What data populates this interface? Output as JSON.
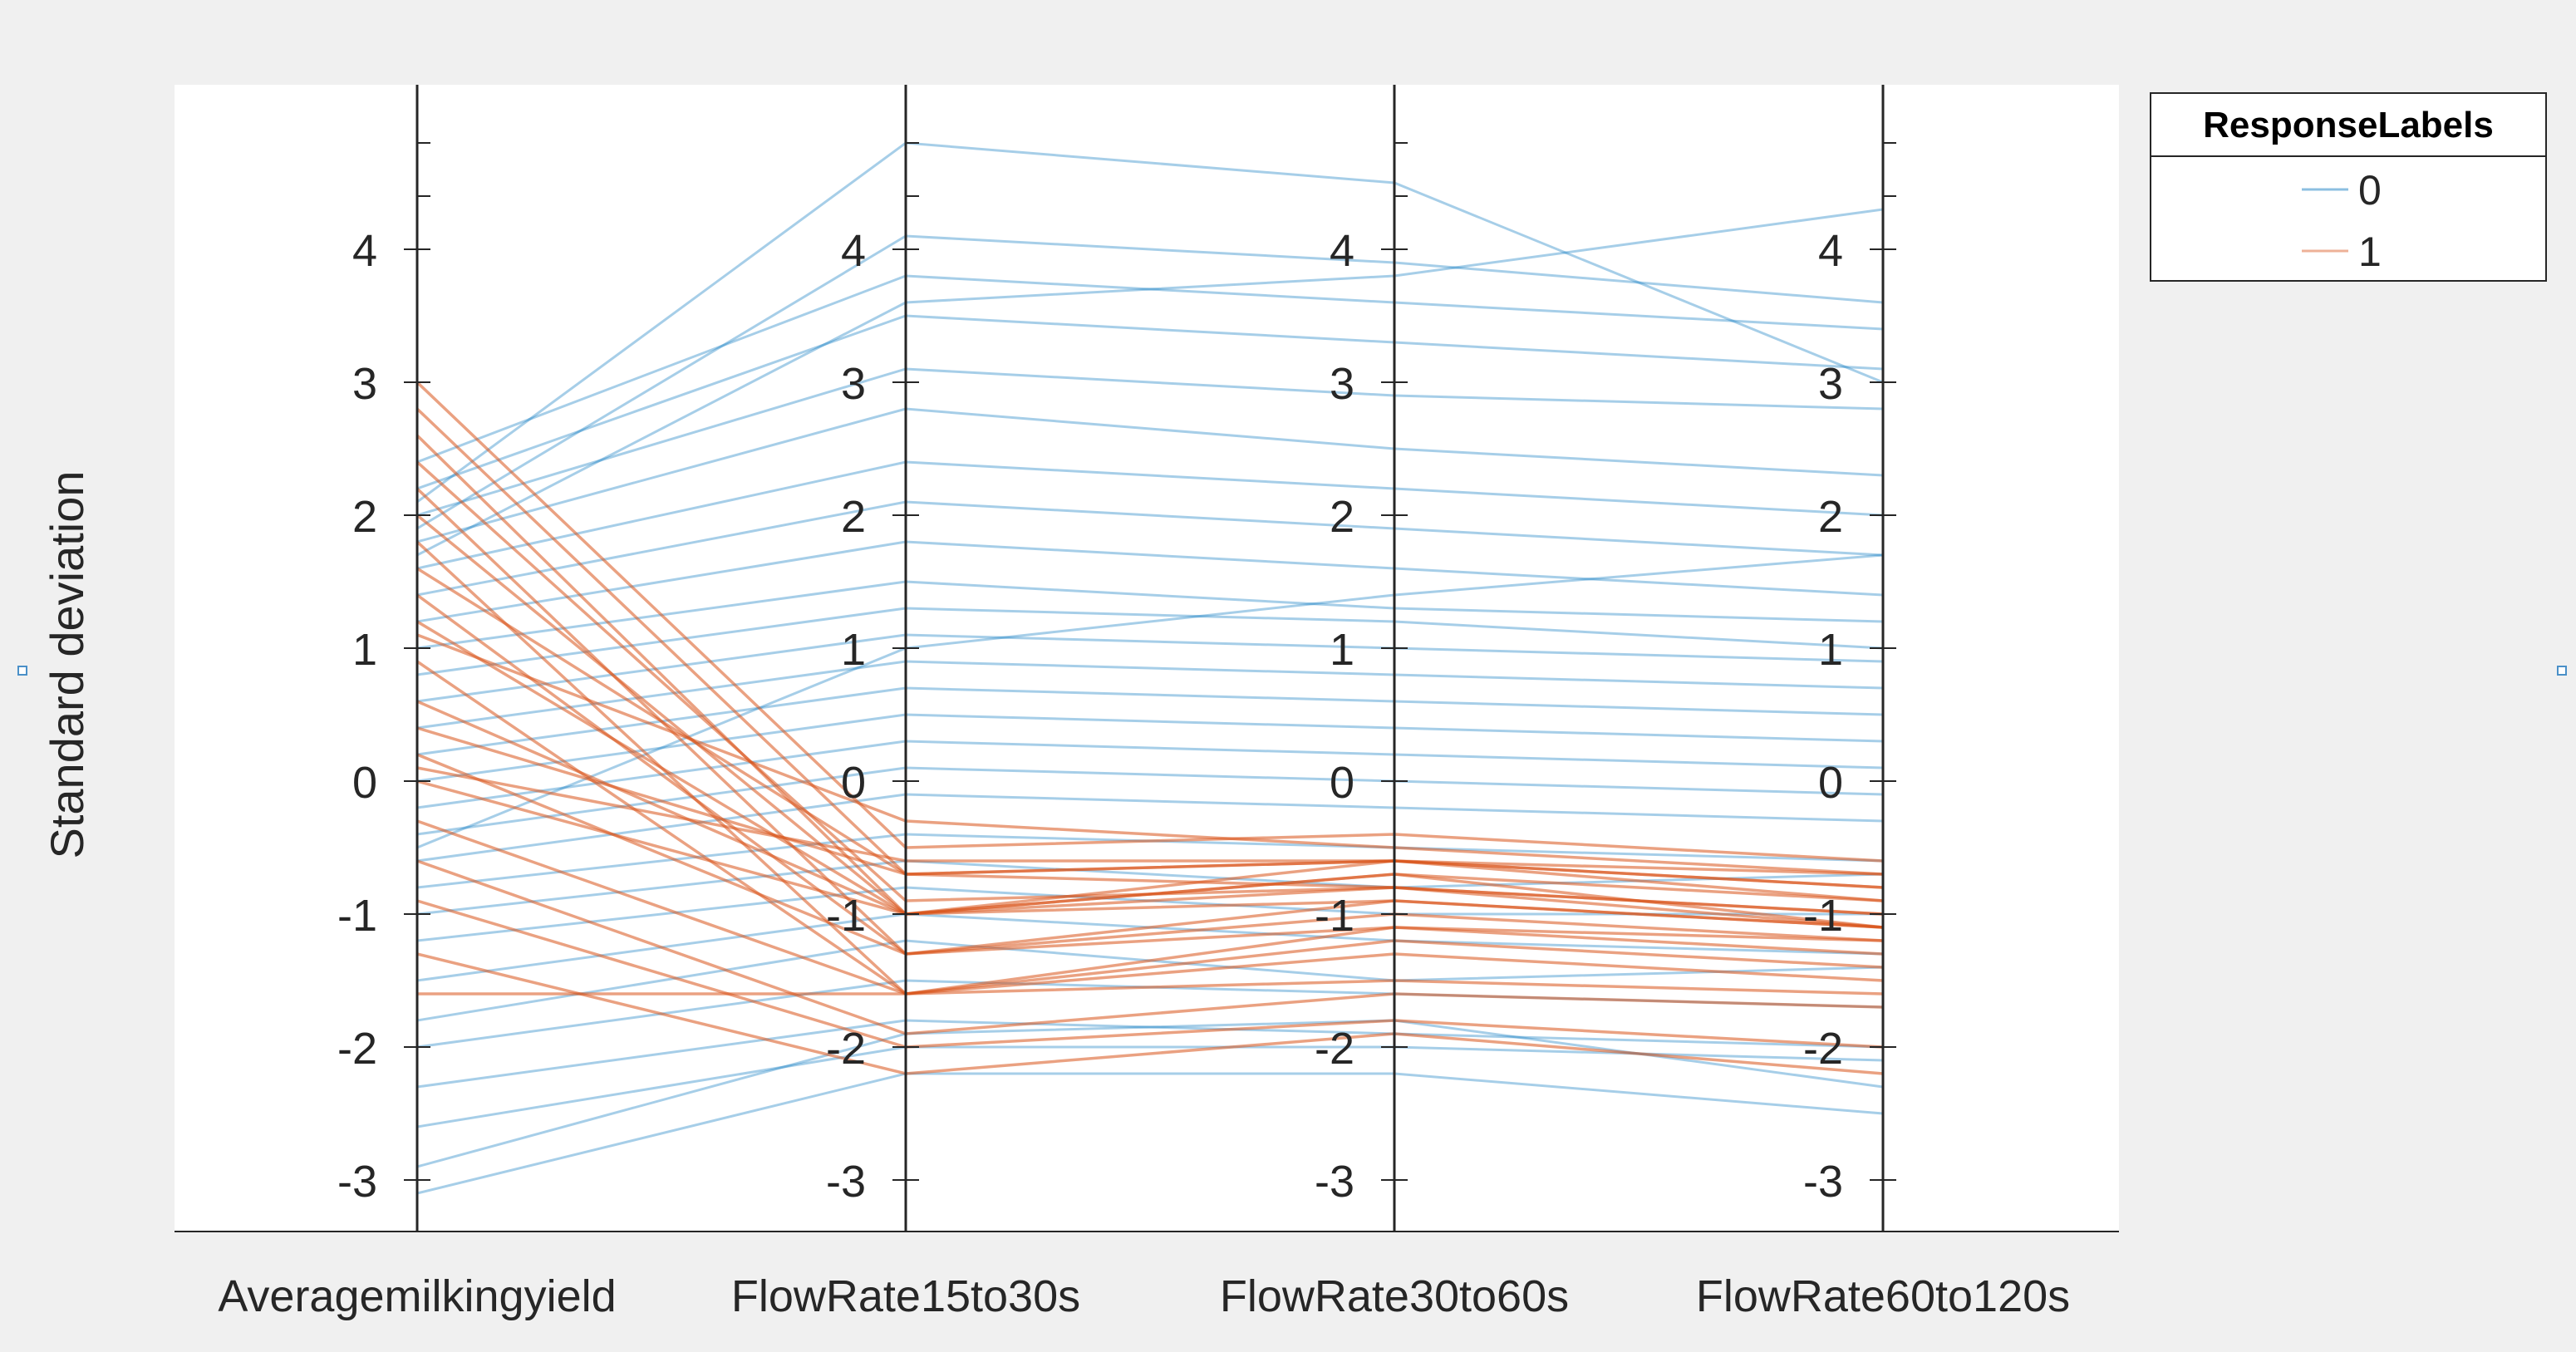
{
  "chart_data": {
    "type": "line",
    "subtype": "parallel-coordinates",
    "ylabel": "Standard deviation",
    "categories": [
      "Averagemilkingyield",
      "FlowRate15to30s",
      "FlowRate30to60s",
      "FlowRate60to120s"
    ],
    "yticks": [
      -3,
      -2,
      -1,
      0,
      1,
      2,
      3,
      4
    ],
    "ylim": [
      -3.5,
      5.2
    ],
    "grid": false,
    "legend": {
      "title": "ResponseLabels",
      "placement": "top-right-outside",
      "entries": [
        {
          "label": "0",
          "color": "#0072bd"
        },
        {
          "label": "1",
          "color": "#d95319"
        }
      ]
    },
    "series": [
      {
        "name": "0",
        "color": "#0072bd",
        "values": [
          [
            -3.1,
            -2.2,
            -2.2,
            -2.5
          ],
          [
            -2.9,
            -1.9,
            -1.8,
            -2.3
          ],
          [
            -2.6,
            -2.0,
            -2.0,
            -2.1
          ],
          [
            -2.3,
            -1.8,
            -1.9,
            -2.0
          ],
          [
            -2.0,
            -1.5,
            -1.6,
            -1.7
          ],
          [
            -1.8,
            -1.2,
            -1.5,
            -1.4
          ],
          [
            -1.5,
            -1.0,
            -1.2,
            -1.3
          ],
          [
            -1.2,
            -0.8,
            -1.0,
            -1.0
          ],
          [
            -1.0,
            -0.6,
            -0.8,
            -0.7
          ],
          [
            -0.8,
            -0.4,
            -0.5,
            -0.6
          ],
          [
            -0.6,
            -0.1,
            -0.2,
            -0.3
          ],
          [
            -0.4,
            0.1,
            0.0,
            -0.1
          ],
          [
            -0.2,
            0.3,
            0.2,
            0.1
          ],
          [
            0.0,
            0.5,
            0.4,
            0.3
          ],
          [
            0.2,
            0.7,
            0.6,
            0.5
          ],
          [
            0.4,
            0.9,
            0.8,
            0.7
          ],
          [
            0.6,
            1.1,
            1.0,
            0.9
          ],
          [
            0.8,
            1.3,
            1.2,
            1.0
          ],
          [
            1.0,
            1.5,
            1.3,
            1.2
          ],
          [
            1.2,
            1.8,
            1.6,
            1.4
          ],
          [
            1.4,
            2.1,
            1.9,
            1.7
          ],
          [
            1.6,
            2.4,
            2.2,
            2.0
          ],
          [
            1.8,
            2.8,
            2.5,
            2.3
          ],
          [
            2.0,
            3.1,
            2.9,
            2.8
          ],
          [
            2.2,
            3.5,
            3.3,
            3.1
          ],
          [
            2.4,
            3.8,
            3.6,
            3.4
          ],
          [
            1.9,
            4.1,
            3.9,
            3.6
          ],
          [
            2.1,
            4.8,
            4.5,
            3.0
          ],
          [
            1.7,
            3.6,
            3.8,
            4.3
          ],
          [
            -0.5,
            1.0,
            1.4,
            1.7
          ]
        ]
      },
      {
        "name": "1",
        "color": "#d95319",
        "values": [
          [
            3.0,
            -0.5,
            -0.4,
            -0.6
          ],
          [
            2.8,
            -0.7,
            -0.6,
            -0.8
          ],
          [
            2.6,
            -1.0,
            -0.7,
            -0.9
          ],
          [
            2.4,
            -0.9,
            -0.8,
            -1.0
          ],
          [
            2.2,
            -1.3,
            -0.9,
            -1.1
          ],
          [
            2.0,
            -1.0,
            -0.9,
            -1.1
          ],
          [
            1.8,
            -1.6,
            -1.1,
            -1.2
          ],
          [
            1.6,
            -0.7,
            -0.8,
            -1.0
          ],
          [
            1.4,
            -1.3,
            -1.0,
            -1.2
          ],
          [
            1.2,
            -1.0,
            -0.7,
            -1.1
          ],
          [
            1.1,
            -0.3,
            -0.5,
            -0.7
          ],
          [
            0.9,
            -1.6,
            -1.2,
            -1.4
          ],
          [
            0.6,
            -1.0,
            -0.6,
            -0.9
          ],
          [
            0.4,
            -0.7,
            -0.6,
            -0.8
          ],
          [
            0.2,
            -1.3,
            -1.1,
            -1.3
          ],
          [
            0.0,
            -1.0,
            -0.8,
            -1.1
          ],
          [
            -0.3,
            -1.6,
            -1.3,
            -1.5
          ],
          [
            -0.6,
            -1.9,
            -1.6,
            -1.7
          ],
          [
            -0.9,
            -2.0,
            -1.8,
            -2.0
          ],
          [
            -1.3,
            -2.2,
            -1.9,
            -2.2
          ],
          [
            -1.6,
            -1.6,
            -1.5,
            -1.6
          ],
          [
            0.1,
            -0.6,
            -0.6,
            -0.7
          ]
        ]
      }
    ]
  }
}
